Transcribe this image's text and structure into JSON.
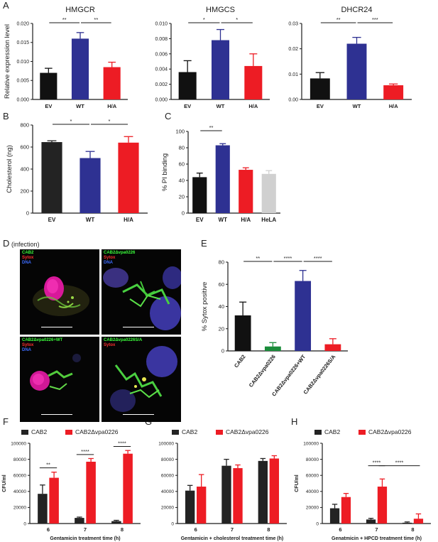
{
  "panels": {
    "a": "A",
    "b": "B",
    "c": "C",
    "d": "D",
    "d_subtitle": "(infection)",
    "e": "E",
    "f": "F",
    "g": "G",
    "h": "H"
  },
  "colors": {
    "black": "#111111",
    "blue": "#2e3192",
    "red": "#ed1c24",
    "green": "#1a8c3a",
    "gray": "#d0d0d0",
    "darkgray": "#232323"
  },
  "micrographs": [
    {
      "lines": [
        {
          "text": "CAB2",
          "color": "#3cff3c"
        },
        {
          "text": "Sytox",
          "color": "#ff3030"
        },
        {
          "text": "DNA",
          "color": "#3c6cff"
        }
      ]
    },
    {
      "lines": [
        {
          "text": "CAB2Δvpa0226",
          "color": "#3cff3c"
        },
        {
          "text": "Sytox",
          "color": "#ff3030"
        },
        {
          "text": "DNA",
          "color": "#3c6cff"
        }
      ]
    },
    {
      "lines": [
        {
          "text": "CAB2Δvpa0226+WT",
          "color": "#3cff3c"
        },
        {
          "text": "Sytox",
          "color": "#ff3030"
        },
        {
          "text": "DNA",
          "color": "#3c6cff"
        }
      ]
    },
    {
      "lines": [
        {
          "text": "CAB2Δvpa0226S/A",
          "color": "#3cff3c"
        },
        {
          "text": "Sytox",
          "color": "#ff3030"
        },
        {
          "text": "DNA",
          "color": "#3c6cff"
        }
      ]
    }
  ],
  "chart_data": [
    {
      "id": "A1",
      "type": "bar",
      "title": "HMGCR",
      "ylabel": "Relative expression level",
      "categories": [
        "EV",
        "WT",
        "H/A"
      ],
      "values": [
        0.007,
        0.016,
        0.0085
      ],
      "errors": [
        0.0012,
        0.0016,
        0.0013
      ],
      "colors": [
        "black",
        "blue",
        "red"
      ],
      "ylim": [
        0,
        0.02
      ],
      "yticks": [
        "0.000",
        "0.005",
        "0.010",
        "0.015",
        "0.020"
      ],
      "ytick_values": [
        0,
        0.005,
        0.01,
        0.015,
        0.02
      ],
      "significance": [
        {
          "from": 0,
          "to": 1,
          "label": "**"
        },
        {
          "from": 1,
          "to": 2,
          "label": "**"
        }
      ]
    },
    {
      "id": "A2",
      "type": "bar",
      "title": "HMGCS",
      "categories": [
        "EV",
        "WT",
        "H/A"
      ],
      "values": [
        0.0036,
        0.0078,
        0.0044
      ],
      "errors": [
        0.0015,
        0.0014,
        0.0016
      ],
      "colors": [
        "black",
        "blue",
        "red"
      ],
      "ylim": [
        0,
        0.01
      ],
      "yticks": [
        "0.000",
        "0.002",
        "0.004",
        "0.006",
        "0.008",
        "0.010"
      ],
      "ytick_values": [
        0,
        0.002,
        0.004,
        0.006,
        0.008,
        0.01
      ],
      "significance": [
        {
          "from": 0,
          "to": 1,
          "label": "*"
        },
        {
          "from": 1,
          "to": 2,
          "label": "*"
        }
      ]
    },
    {
      "id": "A3",
      "type": "bar",
      "title": "DHCR24",
      "categories": [
        "EV",
        "WT",
        "H/A"
      ],
      "values": [
        0.0083,
        0.022,
        0.0056
      ],
      "errors": [
        0.0023,
        0.0025,
        0.0005
      ],
      "colors": [
        "black",
        "blue",
        "red"
      ],
      "ylim": [
        0,
        0.03
      ],
      "yticks": [
        "0.00",
        "0.01",
        "0.02",
        "0.03"
      ],
      "ytick_values": [
        0,
        0.01,
        0.02,
        0.03
      ],
      "significance": [
        {
          "from": 0,
          "to": 1,
          "label": "**"
        },
        {
          "from": 1,
          "to": 2,
          "label": "***"
        }
      ]
    },
    {
      "id": "B",
      "type": "bar",
      "ylabel": "Cholesterol (ng)",
      "categories": [
        "EV",
        "WT",
        "H/A"
      ],
      "values": [
        645,
        500,
        640
      ],
      "errors": [
        12,
        60,
        55
      ],
      "colors": [
        "darkgray",
        "blue",
        "red"
      ],
      "ylim": [
        0,
        800
      ],
      "yticks": [
        "0",
        "200",
        "400",
        "600",
        "800"
      ],
      "ytick_values": [
        0,
        200,
        400,
        600,
        800
      ],
      "significance": [
        {
          "from": 0,
          "to": 1,
          "label": "*"
        },
        {
          "from": 1,
          "to": 2,
          "label": "*"
        }
      ]
    },
    {
      "id": "C",
      "type": "bar",
      "ylabel": "% PI binding",
      "categories": [
        "EV",
        "WT",
        "H/A",
        "HeLA"
      ],
      "values": [
        44,
        83,
        53,
        48
      ],
      "errors": [
        5,
        2,
        2.5,
        4
      ],
      "colors": [
        "black",
        "blue",
        "red",
        "gray"
      ],
      "ylim": [
        0,
        100
      ],
      "yticks": [
        "0",
        "20",
        "40",
        "60",
        "80",
        "100"
      ],
      "ytick_values": [
        0,
        20,
        40,
        60,
        80,
        100
      ],
      "significance": [
        {
          "from": 0,
          "to": 1,
          "label": "**"
        }
      ]
    },
    {
      "id": "E",
      "type": "bar",
      "ylabel": "% Sytox positive",
      "categories": [
        "CAB2",
        "CAB2Δvpa0226",
        "CAB2Δvpa0226+WT",
        "CAB2Δvpa0226S/A"
      ],
      "values": [
        32,
        4,
        63,
        6
      ],
      "errors": [
        12,
        3.5,
        9.5,
        5
      ],
      "colors": [
        "black",
        "green",
        "blue",
        "red"
      ],
      "ylim": [
        0,
        80
      ],
      "yticks": [
        "0",
        "20",
        "40",
        "60",
        "80"
      ],
      "ytick_values": [
        0,
        20,
        40,
        60,
        80
      ],
      "significance": [
        {
          "from": 0,
          "to": 1,
          "label": "**"
        },
        {
          "from": 1,
          "to": 2,
          "label": "****"
        },
        {
          "from": 2,
          "to": 3,
          "label": "****"
        }
      ]
    },
    {
      "id": "F",
      "type": "bar",
      "ylabel": "CFU/ml",
      "xlabel": "Gentamicin treatment time (h)",
      "categories": [
        "6",
        "7",
        "8"
      ],
      "series": [
        {
          "name": "CAB2",
          "color": "darkgray",
          "values": [
            37000,
            7000,
            3000
          ],
          "errors": [
            11000,
            1000,
            1000
          ]
        },
        {
          "name": "CAB2Δvpa0226",
          "color": "red",
          "values": [
            57000,
            77000,
            87000
          ],
          "errors": [
            7000,
            4000,
            4000
          ]
        }
      ],
      "ylim": [
        0,
        100000
      ],
      "yticks": [
        "0",
        "20000",
        "40000",
        "60000",
        "80000",
        "100000"
      ],
      "ytick_values": [
        0,
        20000,
        40000,
        60000,
        80000,
        100000
      ],
      "significance": [
        {
          "group": 0,
          "label": "**"
        },
        {
          "group": 1,
          "label": "****"
        },
        {
          "group": 2,
          "label": "****"
        }
      ]
    },
    {
      "id": "G",
      "type": "bar",
      "xlabel": "Gentamicin + cholesterol treatment time (h)",
      "categories": [
        "6",
        "7",
        "8"
      ],
      "series": [
        {
          "name": "CAB2",
          "color": "darkgray",
          "values": [
            41000,
            72000,
            78000
          ],
          "errors": [
            6500,
            8000,
            3000
          ]
        },
        {
          "name": "CAB2Δvpa0226",
          "color": "red",
          "values": [
            46000,
            69000,
            81000
          ],
          "errors": [
            15000,
            4000,
            3500
          ]
        }
      ],
      "ylim": [
        0,
        100000
      ],
      "yticks": [
        "0",
        "20000",
        "40000",
        "60000",
        "80000",
        "100000"
      ],
      "ytick_values": [
        0,
        20000,
        40000,
        60000,
        80000,
        100000
      ],
      "significance": []
    },
    {
      "id": "H",
      "type": "bar",
      "ylabel": "CFU/ml",
      "xlabel": "Genatmicin + HPCD treatment time (h)",
      "categories": [
        "6",
        "7",
        "8"
      ],
      "series": [
        {
          "name": "CAB2",
          "color": "darkgray",
          "values": [
            19000,
            5000,
            1000
          ],
          "errors": [
            5000,
            1500,
            1000
          ]
        },
        {
          "name": "CAB2Δvpa0226",
          "color": "red",
          "values": [
            33000,
            46000,
            6000
          ],
          "errors": [
            4500,
            9500,
            6000
          ]
        }
      ],
      "ylim": [
        0,
        100000
      ],
      "yticks": [
        "0",
        "20000",
        "40000",
        "60000",
        "80000",
        "100000"
      ],
      "ytick_values": [
        0,
        20000,
        40000,
        60000,
        80000,
        100000
      ],
      "significance": [
        {
          "group": 1,
          "label": "****"
        },
        {
          "span": [
            1,
            2
          ],
          "label": "****"
        }
      ]
    }
  ]
}
